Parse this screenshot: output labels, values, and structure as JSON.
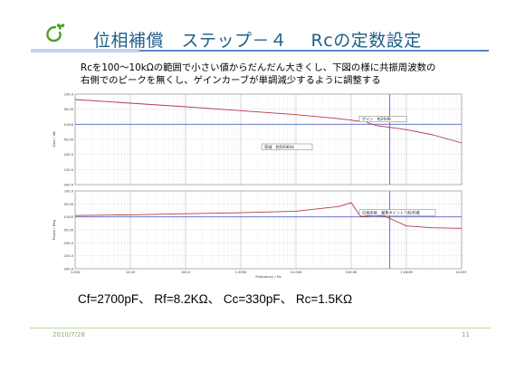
{
  "slide": {
    "title": "位相補償　ステップ－４　 Rcの定数設定",
    "description_lines": [
      "Rcを100～10kΩの範囲で小さい値からだんだん大きくし、下図の様に共振周波数の",
      "右側でのピークを無くし、ゲインカーブが単調減少するように調整する"
    ],
    "parameters": "Cf=2700pF、 Rf=8.2KΩ、 Cc=330pF、 Rc=1.5KΩ",
    "date": "2010/7/28",
    "page_number": "11",
    "accent_color": "#1f5f86",
    "logo_color": "#4aa02c"
  },
  "chart_data": [
    {
      "type": "line",
      "panel": "gain",
      "ylabel": "Gain / dB",
      "x_scale": "log",
      "y_ticks": [
        "100.0",
        "50.00",
        "0.000",
        "-50.00",
        "-100.0",
        "-150.0",
        "-200.0"
      ],
      "ylim": [
        -200,
        100
      ],
      "series": [
        {
          "color": "#b03a4a",
          "x": [
            1,
            10,
            100,
            1000,
            10000,
            50000,
            100000,
            130000,
            160000,
            200000,
            300000,
            500000,
            1000000,
            3000000,
            10000000
          ],
          "y": [
            82,
            70,
            58,
            45,
            32,
            20,
            14,
            10,
            17,
            5,
            -5,
            -10,
            -18,
            -35,
            -62
          ]
        }
      ],
      "reference_lines": {
        "y": 0,
        "x": 500000
      },
      "annotations": [
        "ゲイン　約20dB",
        "帯域　約500KHz"
      ]
    },
    {
      "type": "line",
      "panel": "phase",
      "ylabel": "Phase / Deg",
      "x_scale": "log",
      "y_ticks": [
        "100.0",
        "50.00",
        "0.000",
        "-50.00",
        "-100.0",
        "-150.0",
        "-200.0"
      ],
      "x_ticks": [
        "1.000",
        "10.00",
        "100.0",
        "1.000K",
        "10.00K",
        "100.0K",
        "1.000M",
        "10.00M"
      ],
      "xlabel": "Frequency / Hz",
      "ylim": [
        -200,
        100
      ],
      "series": [
        {
          "color": "#b03a4a",
          "x": [
            1,
            10,
            100,
            1000,
            10000,
            60000,
            100000,
            120000,
            150000,
            250000,
            400000,
            700000,
            1000000,
            3000000,
            10000000
          ],
          "y": [
            5,
            8,
            12,
            16,
            22,
            40,
            55,
            30,
            0,
            5,
            3,
            -20,
            -35,
            -42,
            -44
          ]
        }
      ],
      "reference_lines": {
        "y": 0,
        "x": 500000
      },
      "annotations": [
        "位相余裕　基準ポイントで約45度"
      ]
    }
  ]
}
